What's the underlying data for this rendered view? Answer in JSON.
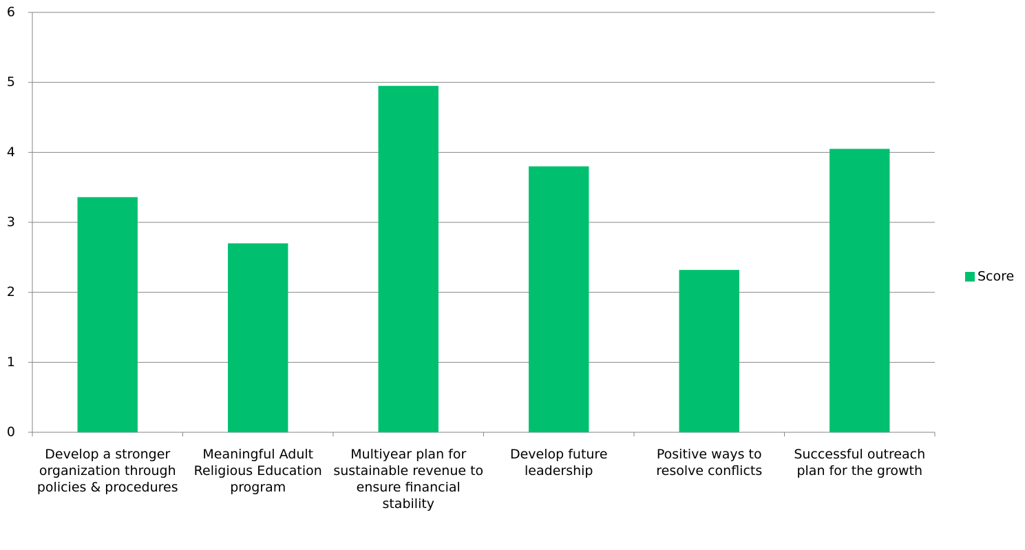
{
  "chart_data": {
    "type": "bar",
    "categories": [
      "Develop a stronger organization through policies & procedures",
      "Meaningful Adult Religious Education program",
      "Multiyear plan for sustainable revenue to ensure financial stability",
      "Develop future leadership",
      "Positive ways to resolve conflicts",
      "Successful outreach plan for the growth"
    ],
    "series": [
      {
        "name": "Score",
        "color": "#00c070",
        "values": [
          3.36,
          2.7,
          4.95,
          3.8,
          2.32,
          4.05
        ]
      }
    ],
    "ylim": [
      0,
      6
    ],
    "yticks": [
      0,
      1,
      2,
      3,
      4,
      5,
      6
    ],
    "grid": true,
    "legend": "right"
  }
}
